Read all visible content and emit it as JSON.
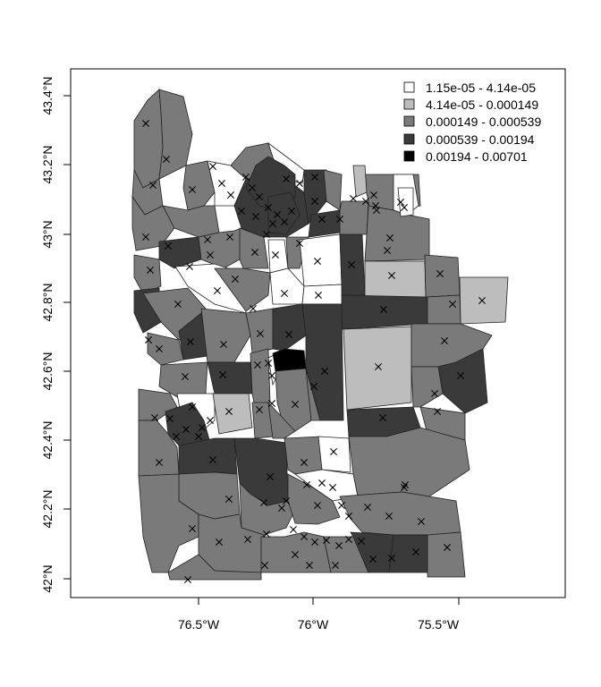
{
  "map": {
    "axes": {
      "x_ticks": [
        "76.5°W",
        "76°W",
        "75.5°W"
      ],
      "y_ticks": [
        "42°N",
        "42.2°N",
        "42.4°N",
        "42.6°N",
        "42.8°N",
        "43°N",
        "43.2°N",
        "43.4°N"
      ]
    },
    "legend": {
      "placement": "top-right",
      "classes": [
        {
          "label": "1.15e-05 - 4.14e-05",
          "color": "#ffffff"
        },
        {
          "label": "4.14e-05 - 0.000149",
          "color": "#bdbdbd"
        },
        {
          "label": "0.000149 - 0.000539",
          "color": "#7a7a7a"
        },
        {
          "label": "0.000539 - 0.00194",
          "color": "#3a3a3a"
        },
        {
          "label": "0.00194 - 0.00701",
          "color": "#000000"
        }
      ]
    },
    "marker_symbol": "x-mark",
    "colors": {
      "background": "#ffffff",
      "frame": "#000000",
      "boundary": "#222222"
    }
  }
}
